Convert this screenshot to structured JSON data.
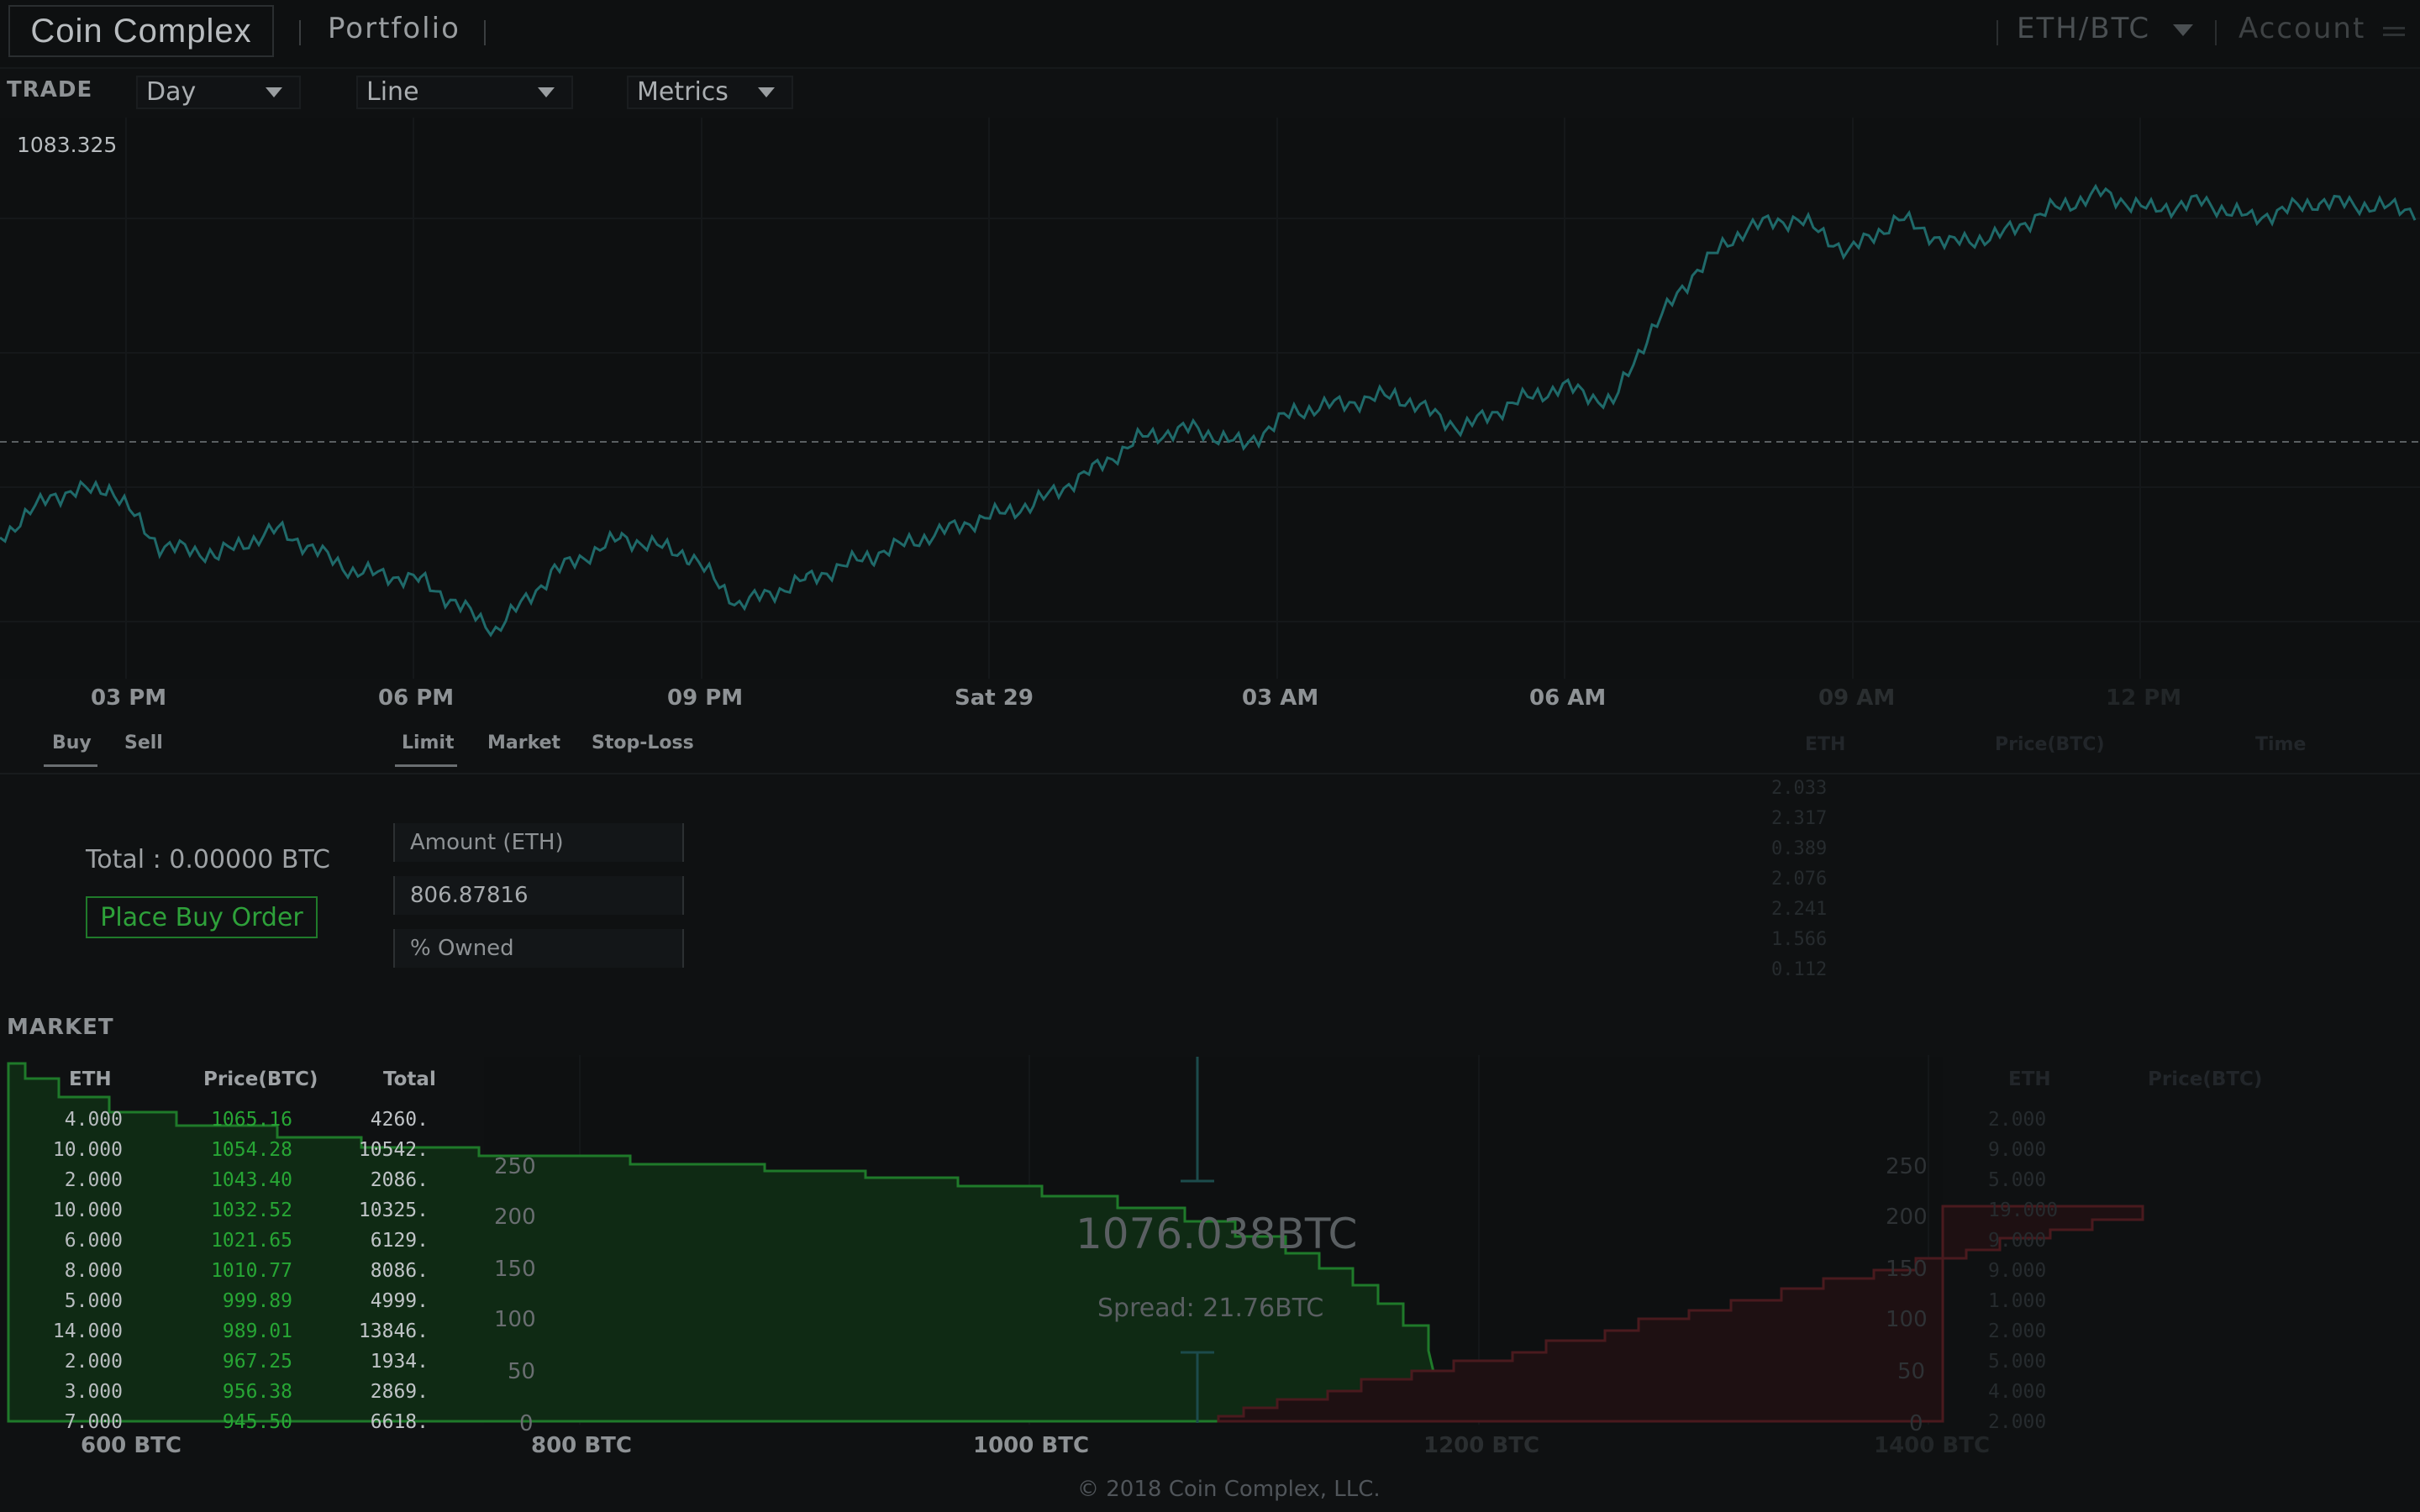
{
  "header": {
    "logo": "Coin Complex",
    "nav_portfolio": "Portfolio",
    "pair": "ETH/BTC",
    "account": "Account"
  },
  "tradebar": {
    "title": "TRADE",
    "range": "Day",
    "chart_type": "Line",
    "metrics": "Metrics"
  },
  "chart": {
    "price_label": "1083.325",
    "x_ticks": [
      "03 PM",
      "06 PM",
      "09 PM",
      "Sat 29",
      "03 AM",
      "06 AM",
      "09 AM",
      "12 PM"
    ],
    "line_color": "#1f6a6a"
  },
  "order": {
    "side_tabs": [
      "Buy",
      "Sell"
    ],
    "type_tabs": [
      "Limit",
      "Market",
      "Stop-Loss"
    ],
    "total": "Total : 0.00000 BTC",
    "place_button": "Place Buy Order",
    "amount_placeholder": "Amount (ETH)",
    "price_value": "806.87816",
    "owned_placeholder": "% Owned"
  },
  "trade_history": {
    "headers": [
      "ETH",
      "Price(BTC)",
      "Time"
    ],
    "eth": [
      "2.033",
      "2.317",
      "0.389",
      "2.076",
      "2.241",
      "1.566",
      "0.112"
    ]
  },
  "market": {
    "title": "MARKET",
    "buy_headers": [
      "ETH",
      "Price(BTC)",
      "Total"
    ],
    "buy_rows": [
      {
        "eth": "4.000",
        "price": "1065.16",
        "total": "4260."
      },
      {
        "eth": "10.000",
        "price": "1054.28",
        "total": "10542."
      },
      {
        "eth": "2.000",
        "price": "1043.40",
        "total": "2086."
      },
      {
        "eth": "10.000",
        "price": "1032.52",
        "total": "10325."
      },
      {
        "eth": "6.000",
        "price": "1021.65",
        "total": "6129."
      },
      {
        "eth": "8.000",
        "price": "1010.77",
        "total": "8086."
      },
      {
        "eth": "5.000",
        "price": "999.89",
        "total": "4999."
      },
      {
        "eth": "14.000",
        "price": "989.01",
        "total": "13846."
      },
      {
        "eth": "2.000",
        "price": "967.25",
        "total": "1934."
      },
      {
        "eth": "3.000",
        "price": "956.38",
        "total": "2869."
      },
      {
        "eth": "7.000",
        "price": "945.50",
        "total": "6618."
      }
    ],
    "sell_headers": [
      "ETH",
      "Price(BTC)"
    ],
    "sell_eth": [
      "2.000",
      "9.000",
      "5.000",
      "19.000",
      "9.000",
      "9.000",
      "1.000",
      "2.000",
      "5.000",
      "4.000",
      "2.000"
    ],
    "mid_price": "1076.038BTC",
    "spread": "Spread: 21.76BTC",
    "depth_y_ticks": [
      "250",
      "200",
      "150",
      "100",
      "50",
      "0"
    ],
    "depth_x_ticks": [
      "600 BTC",
      "800 BTC",
      "1000 BTC",
      "1200 BTC",
      "1400 BTC"
    ]
  },
  "footer": "© 2018 Coin Complex, LLC."
}
